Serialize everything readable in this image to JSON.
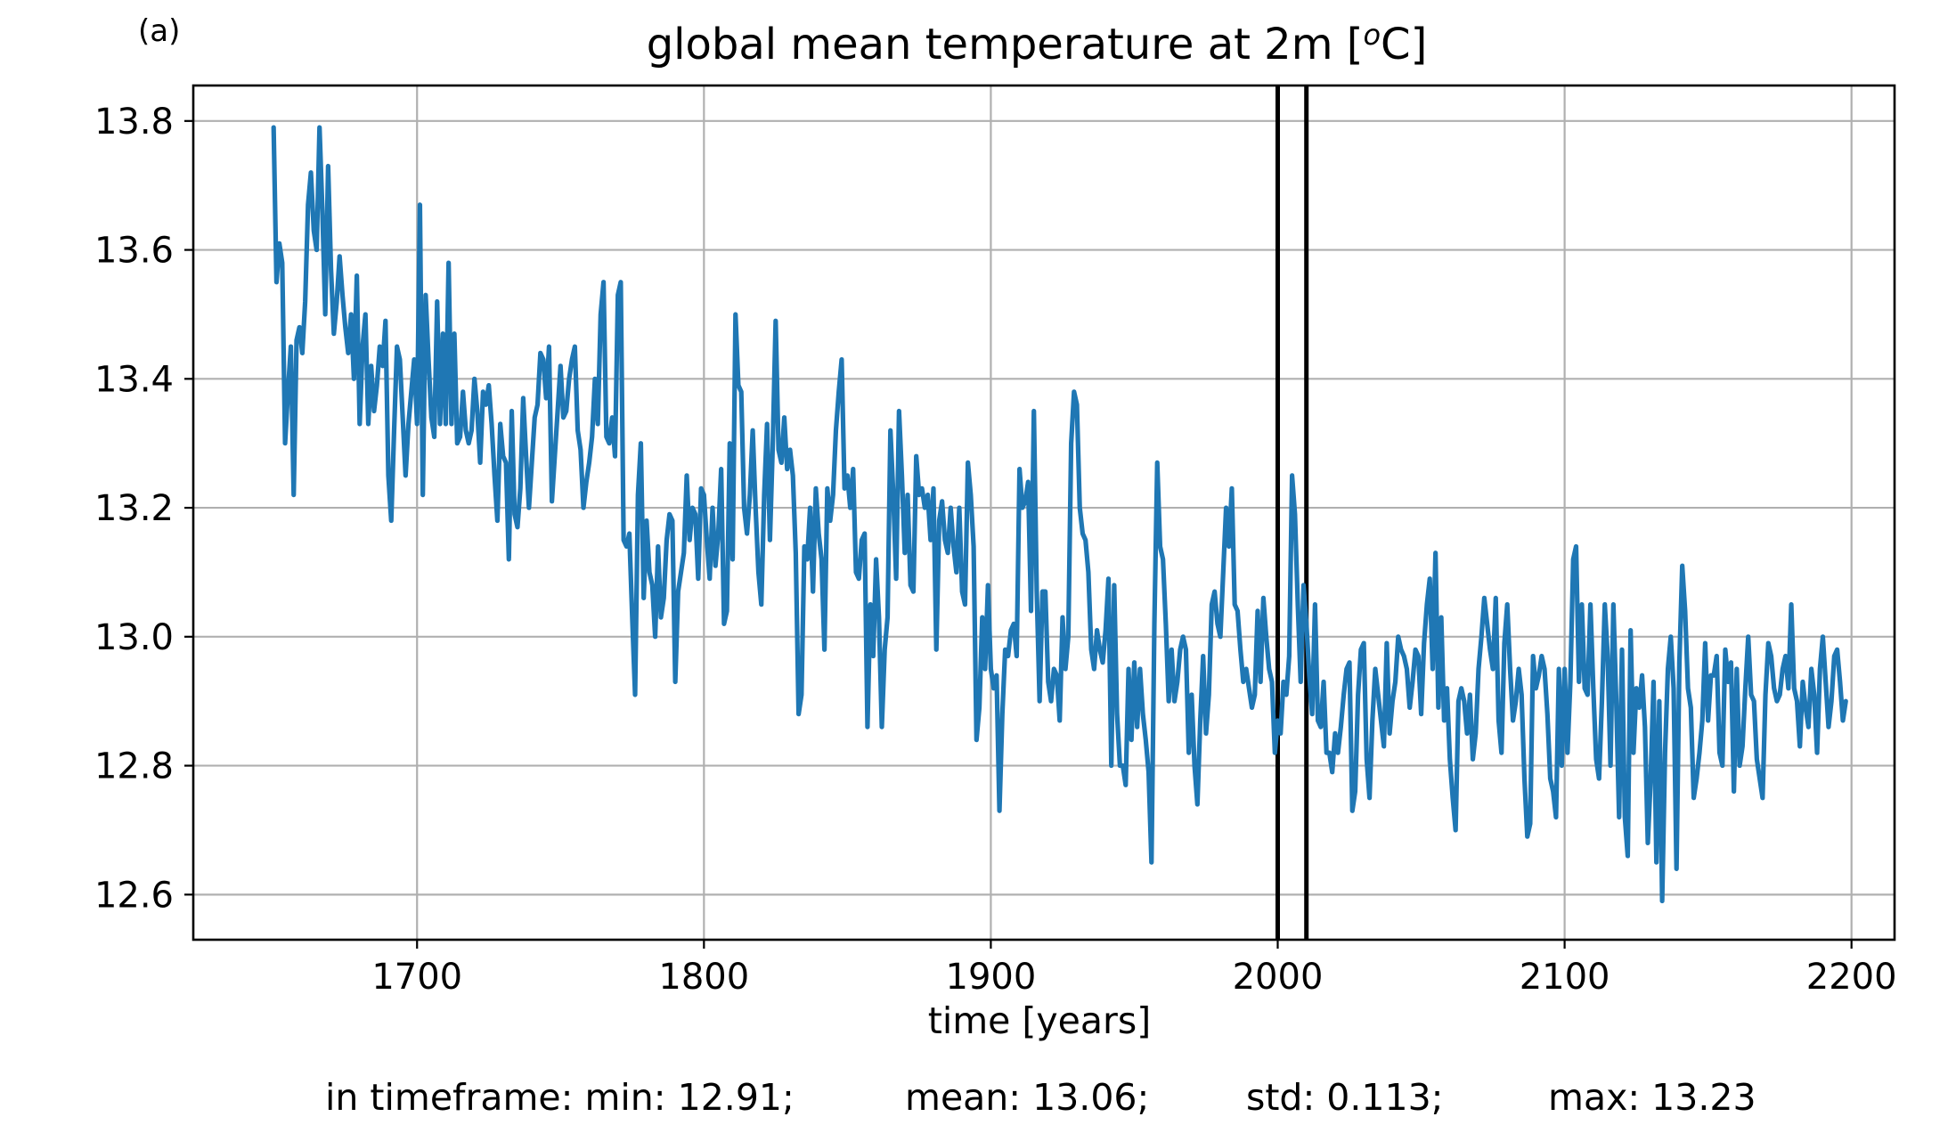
{
  "panel_label": "(a)",
  "chart_data": {
    "type": "line",
    "title_prefix": "global mean temperature at 2m [",
    "title_superscript": "o",
    "title_suffix": "C]",
    "xlabel": "time [years]",
    "ylabel": "",
    "xlim": [
      1622,
      2215
    ],
    "ylim": [
      12.53,
      13.855
    ],
    "xticks": [
      1700,
      1800,
      1900,
      2000,
      2100,
      2200
    ],
    "yticks": [
      12.6,
      12.8,
      13.0,
      13.2,
      13.4,
      13.6,
      13.8
    ],
    "ytick_labels": [
      "12.6",
      "12.8",
      "13.0",
      "13.2",
      "13.4",
      "13.6",
      "13.8"
    ],
    "grid": true,
    "line_color": "#1f77b4",
    "vlines": [
      2000,
      2010
    ],
    "vline_color": "#000000",
    "series": [
      {
        "x_start": 1650,
        "x_step": 1,
        "values": [
          13.79,
          13.55,
          13.61,
          13.58,
          13.3,
          13.38,
          13.45,
          13.22,
          13.46,
          13.48,
          13.44,
          13.52,
          13.67,
          13.72,
          13.63,
          13.6,
          13.79,
          13.66,
          13.5,
          13.73,
          13.57,
          13.47,
          13.52,
          13.59,
          13.53,
          13.48,
          13.44,
          13.5,
          13.4,
          13.56,
          13.33,
          13.45,
          13.5,
          13.33,
          13.42,
          13.35,
          13.39,
          13.45,
          13.42,
          13.49,
          13.25,
          13.18,
          13.32,
          13.45,
          13.43,
          13.34,
          13.25,
          13.33,
          13.38,
          13.43,
          13.33,
          13.67,
          13.22,
          13.53,
          13.43,
          13.34,
          13.31,
          13.52,
          13.33,
          13.47,
          13.33,
          13.58,
          13.33,
          13.47,
          13.3,
          13.31,
          13.38,
          13.32,
          13.3,
          13.32,
          13.4,
          13.35,
          13.27,
          13.38,
          13.36,
          13.39,
          13.33,
          13.25,
          13.18,
          13.33,
          13.28,
          13.27,
          13.12,
          13.35,
          13.19,
          13.17,
          13.23,
          13.37,
          13.28,
          13.2,
          13.27,
          13.34,
          13.36,
          13.44,
          13.43,
          13.37,
          13.45,
          13.21,
          13.28,
          13.35,
          13.42,
          13.34,
          13.35,
          13.4,
          13.43,
          13.45,
          13.32,
          13.29,
          13.2,
          13.24,
          13.27,
          13.31,
          13.4,
          13.33,
          13.5,
          13.55,
          13.31,
          13.3,
          13.34,
          13.28,
          13.53,
          13.55,
          13.15,
          13.14,
          13.16,
          13.03,
          12.91,
          13.22,
          13.3,
          13.06,
          13.18,
          13.1,
          13.08,
          13.0,
          13.14,
          13.03,
          13.06,
          13.15,
          13.19,
          13.18,
          12.93,
          13.07,
          13.1,
          13.13,
          13.25,
          13.15,
          13.2,
          13.19,
          13.09,
          13.23,
          13.22,
          13.15,
          13.09,
          13.2,
          13.11,
          13.16,
          13.26,
          13.02,
          13.04,
          13.3,
          13.12,
          13.5,
          13.39,
          13.38,
          13.2,
          13.16,
          13.22,
          13.32,
          13.2,
          13.1,
          13.05,
          13.22,
          13.33,
          13.15,
          13.3,
          13.49,
          13.29,
          13.27,
          13.34,
          13.26,
          13.29,
          13.25,
          13.13,
          12.88,
          12.91,
          13.14,
          13.12,
          13.2,
          13.07,
          13.23,
          13.16,
          13.12,
          12.98,
          13.23,
          13.18,
          13.22,
          13.32,
          13.38,
          13.43,
          13.23,
          13.25,
          13.2,
          13.26,
          13.1,
          13.09,
          13.15,
          13.16,
          12.86,
          13.05,
          12.97,
          13.12,
          13.03,
          12.86,
          12.98,
          13.03,
          13.32,
          13.22,
          13.09,
          13.35,
          13.25,
          13.13,
          13.22,
          13.08,
          13.07,
          13.28,
          13.22,
          13.23,
          13.2,
          13.22,
          13.15,
          13.23,
          12.98,
          13.18,
          13.21,
          13.15,
          13.13,
          13.2,
          13.14,
          13.1,
          13.2,
          13.07,
          13.05,
          13.27,
          13.22,
          13.14,
          12.84,
          12.89,
          13.03,
          12.95,
          13.08,
          12.95,
          12.92,
          12.94,
          12.73,
          12.88,
          12.98,
          12.97,
          13.01,
          13.02,
          12.97,
          13.26,
          13.2,
          13.21,
          13.24,
          13.04,
          13.35,
          13.07,
          12.9,
          13.07,
          13.07,
          12.93,
          12.9,
          12.95,
          12.94,
          12.87,
          13.03,
          12.95,
          13.0,
          13.3,
          13.38,
          13.36,
          13.2,
          13.16,
          13.15,
          13.1,
          12.98,
          12.95,
          13.01,
          12.98,
          12.96,
          13.01,
          13.09,
          12.8,
          13.08,
          12.88,
          12.8,
          12.8,
          12.77,
          12.95,
          12.84,
          12.96,
          12.86,
          12.95,
          12.88,
          12.84,
          12.79,
          12.65,
          13.02,
          13.27,
          13.14,
          13.12,
          13.02,
          12.9,
          12.98,
          12.9,
          12.93,
          12.98,
          13.0,
          12.98,
          12.82,
          12.91,
          12.8,
          12.74,
          12.87,
          12.97,
          12.85,
          12.91,
          13.05,
          13.07,
          13.02,
          13.0,
          13.1,
          13.2,
          13.14,
          13.23,
          13.05,
          13.04,
          12.98,
          12.93,
          12.95,
          12.92,
          12.89,
          12.91,
          13.04,
          12.93,
          13.06,
          13.0,
          12.95,
          12.93,
          12.82,
          12.87,
          12.85,
          12.93,
          12.91,
          12.97,
          13.25,
          13.19,
          13.05,
          12.93,
          13.08,
          13.02,
          12.94,
          12.88,
          13.05,
          12.87,
          12.86,
          12.93,
          12.82,
          12.82,
          12.79,
          12.85,
          12.82,
          12.86,
          12.91,
          12.95,
          12.96,
          12.73,
          12.76,
          12.91,
          12.98,
          12.99,
          12.81,
          12.75,
          12.87,
          12.95,
          12.91,
          12.87,
          12.83,
          12.99,
          12.85,
          12.9,
          12.93,
          13.0,
          12.98,
          12.97,
          12.95,
          12.89,
          12.93,
          12.98,
          12.97,
          12.88,
          12.99,
          13.05,
          13.09,
          12.95,
          13.13,
          12.89,
          13.03,
          12.87,
          12.92,
          12.81,
          12.75,
          12.7,
          12.9,
          12.92,
          12.9,
          12.85,
          12.91,
          12.81,
          12.85,
          12.95,
          13.0,
          13.06,
          13.02,
          12.98,
          12.95,
          13.06,
          12.87,
          12.82,
          12.99,
          13.05,
          12.95,
          12.87,
          12.9,
          12.95,
          12.91,
          12.78,
          12.69,
          12.71,
          12.97,
          12.92,
          12.94,
          12.97,
          12.95,
          12.88,
          12.78,
          12.76,
          12.72,
          12.95,
          12.8,
          12.95,
          12.82,
          12.93,
          13.12,
          13.14,
          12.93,
          13.05,
          12.92,
          12.91,
          13.05,
          12.92,
          12.81,
          12.78,
          12.9,
          13.05,
          12.97,
          12.8,
          13.05,
          12.9,
          12.72,
          12.98,
          12.72,
          12.66,
          13.01,
          12.82,
          12.92,
          12.89,
          12.94,
          12.86,
          12.68,
          12.78,
          12.93,
          12.65,
          12.9,
          12.59,
          12.82,
          12.95,
          13.0,
          12.92,
          12.64,
          12.96,
          13.11,
          13.04,
          12.92,
          12.89,
          12.75,
          12.78,
          12.82,
          12.87,
          12.99,
          12.87,
          12.94,
          12.94,
          12.97,
          12.82,
          12.8,
          12.98,
          12.93,
          12.96,
          12.76,
          12.95,
          12.8,
          12.83,
          12.92,
          13.0,
          12.91,
          12.9,
          12.81,
          12.78,
          12.75,
          12.91,
          12.99,
          12.97,
          12.92,
          12.9,
          12.91,
          12.95,
          12.97,
          12.92,
          13.05,
          12.92,
          12.9,
          12.83,
          12.93,
          12.89,
          12.86,
          12.95,
          12.91,
          12.82,
          12.95,
          13.0,
          12.93,
          12.86,
          12.9,
          12.97,
          12.98,
          12.93,
          12.87,
          12.9
        ]
      }
    ]
  },
  "stats": {
    "min": "in timeframe: min: 12.91;",
    "mean": "mean: 13.06;",
    "std": "std: 0.113;",
    "max": "max: 13.23"
  }
}
